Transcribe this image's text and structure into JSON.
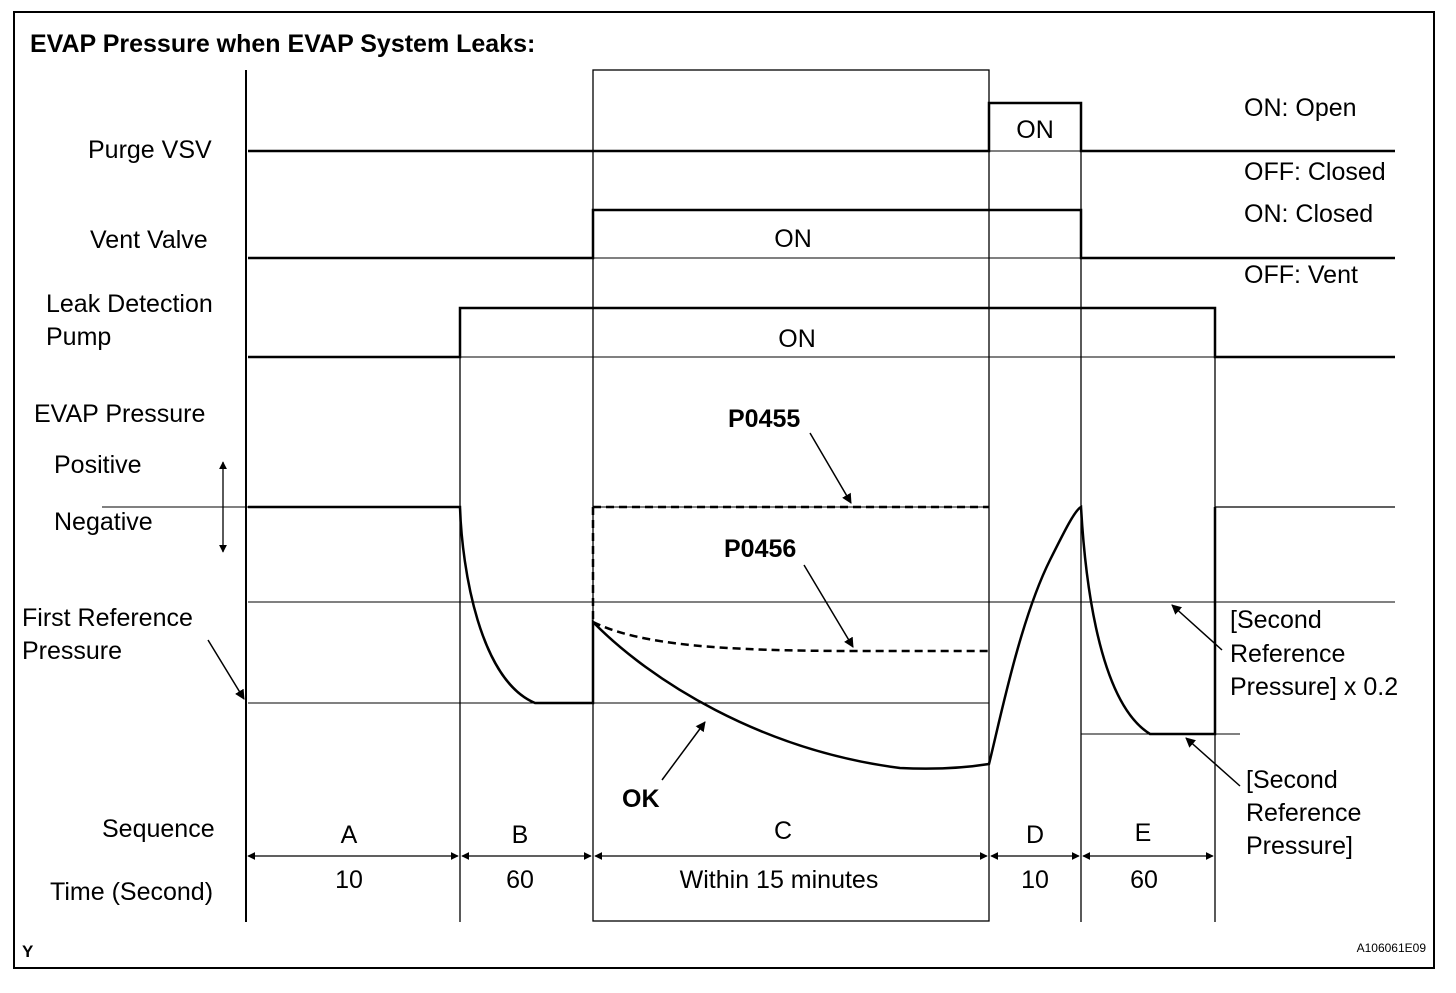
{
  "title": "EVAP Pressure when EVAP System Leaks:",
  "rows": {
    "purge_vsv": "Purge VSV",
    "vent_valve": "Vent Valve",
    "leak_pump_line1": "Leak Detection",
    "leak_pump_line2": "Pump",
    "evap_pressure": "EVAP Pressure",
    "positive": "Positive",
    "negative": "Negative",
    "first_ref_line1": "First Reference",
    "first_ref_line2": "Pressure",
    "sequence": "Sequence",
    "time": "Time (Second)"
  },
  "states": {
    "purge_on": "ON",
    "vent_on": "ON",
    "pump_on": "ON",
    "purge_open": "ON: Open",
    "purge_closed": "OFF: Closed",
    "vent_closed": "ON: Closed",
    "vent_vent": "OFF: Vent"
  },
  "curves": {
    "p0455": "P0455",
    "p0456": "P0456",
    "ok": "OK"
  },
  "second_ref": {
    "factor_line1": "[Second",
    "factor_line2": "Reference",
    "factor_line3": "Pressure] x 0.2",
    "base_line1": "[Second",
    "base_line2": "Reference",
    "base_line3": "Pressure]"
  },
  "sequence": [
    {
      "label": "A",
      "time": "10"
    },
    {
      "label": "B",
      "time": "60"
    },
    {
      "label": "C",
      "time": "Within 15 minutes"
    },
    {
      "label": "D",
      "time": "10"
    },
    {
      "label": "E",
      "time": "60"
    }
  ],
  "footer": {
    "left_mark": "Y",
    "figure_id": "A106061E09"
  }
}
